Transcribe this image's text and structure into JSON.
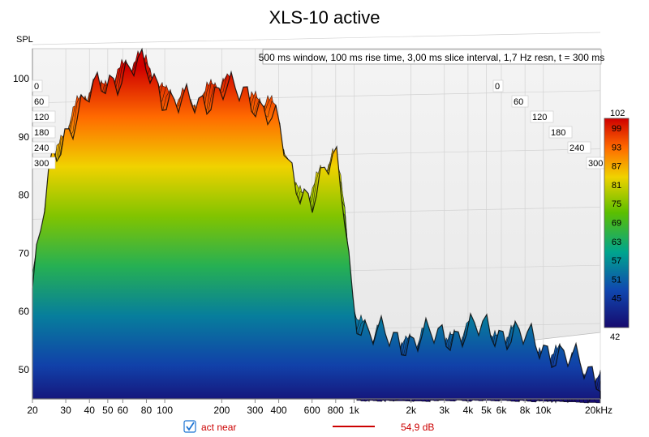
{
  "chart_data": {
    "type": "waterfall",
    "title": "XLS-10 active",
    "ylabel": "SPL",
    "settings_text": "500 ms window, 100 ms rise time, 3,00 ms slice interval, 1,7 Hz resn, t = 300 ms",
    "x_axis": {
      "scale": "log",
      "range_hz": [
        20,
        20000
      ],
      "ticks": [
        {
          "value": 20,
          "label": "20"
        },
        {
          "value": 30,
          "label": "30"
        },
        {
          "value": 40,
          "label": "40"
        },
        {
          "value": 50,
          "label": "50"
        },
        {
          "value": 60,
          "label": "60"
        },
        {
          "value": 80,
          "label": "80"
        },
        {
          "value": 100,
          "label": "100"
        },
        {
          "value": 200,
          "label": "200"
        },
        {
          "value": 300,
          "label": "300"
        },
        {
          "value": 400,
          "label": "400"
        },
        {
          "value": 600,
          "label": "600"
        },
        {
          "value": 800,
          "label": "800"
        },
        {
          "value": 1000,
          "label": "1k"
        },
        {
          "value": 2000,
          "label": "2k"
        },
        {
          "value": 3000,
          "label": "3k"
        },
        {
          "value": 4000,
          "label": "4k"
        },
        {
          "value": 5000,
          "label": "5k"
        },
        {
          "value": 6000,
          "label": "6k"
        },
        {
          "value": 8000,
          "label": "8k"
        },
        {
          "value": 10000,
          "label": "10k"
        },
        {
          "value": 20000,
          "label": "20kHz"
        }
      ]
    },
    "y_axis": {
      "range_db": [
        45,
        104
      ],
      "ticks": [
        {
          "value": 50,
          "label": "50"
        },
        {
          "value": 60,
          "label": "60"
        },
        {
          "value": 70,
          "label": "70"
        },
        {
          "value": 80,
          "label": "80"
        },
        {
          "value": 90,
          "label": "90"
        },
        {
          "value": 100,
          "label": "100"
        }
      ]
    },
    "time_axis": {
      "unit": "ms",
      "ticks_left": [
        "0",
        "60",
        "120",
        "180",
        "240",
        "300"
      ],
      "ticks_right": [
        "0",
        "60",
        "120",
        "180",
        "240",
        "300"
      ]
    },
    "color_scale": {
      "min": 42,
      "max": 102,
      "labels": [
        "102",
        "99",
        "93",
        "87",
        "81",
        "75",
        "69",
        "63",
        "57",
        "51",
        "45",
        "42"
      ],
      "stops": [
        "#d40000",
        "#ff6a00",
        "#f5d400",
        "#63c000",
        "#00a88a",
        "#1048b0",
        "#1a0a70"
      ]
    },
    "front_slice_db": [
      [
        20,
        64
      ],
      [
        25,
        85
      ],
      [
        30,
        91
      ],
      [
        40,
        97
      ],
      [
        50,
        99.5
      ],
      [
        60,
        101
      ],
      [
        70,
        102
      ],
      [
        80,
        101.5
      ],
      [
        100,
        97
      ],
      [
        120,
        96
      ],
      [
        150,
        95
      ],
      [
        200,
        99
      ],
      [
        250,
        97
      ],
      [
        300,
        96
      ],
      [
        350,
        95
      ],
      [
        400,
        92
      ],
      [
        450,
        84
      ],
      [
        500,
        81
      ],
      [
        600,
        80
      ],
      [
        700,
        84
      ],
      [
        800,
        86
      ],
      [
        900,
        76
      ],
      [
        1000,
        60
      ],
      [
        1200,
        56
      ],
      [
        2000,
        55
      ],
      [
        3000,
        56
      ],
      [
        5000,
        57
      ],
      [
        7000,
        56
      ],
      [
        10000,
        54
      ],
      [
        15000,
        51
      ],
      [
        20000,
        49
      ]
    ],
    "legend": {
      "checked": true,
      "series_name": "act near",
      "color": "#cc0000",
      "value": "54,9 dB"
    }
  }
}
